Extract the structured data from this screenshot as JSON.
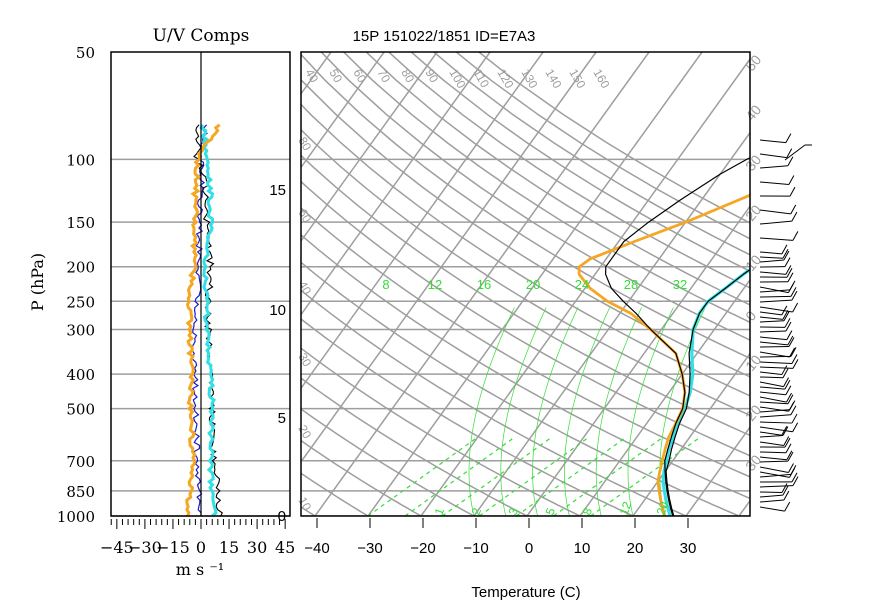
{
  "left_panel": {
    "title": "U/V Comps",
    "ylabel": "P (hPa)",
    "xlabel": "m s ⁻¹",
    "ytick_labels": [
      "50",
      "100",
      "150",
      "200",
      "250",
      "300",
      "400",
      "500",
      "700",
      "850",
      "1000"
    ],
    "xtick_labels": [
      "−45",
      "−30",
      "−15",
      "0",
      "15",
      "30",
      "45"
    ]
  },
  "right_panel": {
    "title": "15P 151022/1851 ID=E7A3",
    "xlabel": "Temperature (C)",
    "xtick_labels": [
      "−40",
      "−30",
      "−20",
      "−10",
      "0",
      "10",
      "20",
      "30"
    ],
    "height_labels": [
      "0",
      "5",
      "10",
      "15"
    ],
    "mixing_ratio_labels": [
      "8",
      "12",
      "16",
      "20",
      "24",
      "28",
      "32"
    ],
    "bottom_green_labels": [
      "1",
      "2",
      "3",
      "5",
      "8",
      "12",
      "20"
    ],
    "top_gray_labels": [
      "40",
      "50",
      "60",
      "70",
      "80",
      "90",
      "100",
      "110",
      "120",
      "130",
      "140",
      "150",
      "160"
    ],
    "left_gray_labels": [
      "80",
      "60",
      "40",
      "30",
      "20",
      "10"
    ],
    "right_gray_labels": [
      "50",
      "40",
      "30",
      "20",
      "10",
      "0",
      "10",
      "20",
      "30"
    ]
  },
  "colors": {
    "grid": "#9e9e9e",
    "temperature": "#000000",
    "parcel": "#000000",
    "dewpoint": "#f5a623",
    "cyan": "#33dfe6",
    "mixing_ratio": "#33dd33",
    "u_line": "#1a1acc"
  },
  "chart_data": {
    "type": "line",
    "title": "15P 151022/1851 ID=E7A3",
    "xlabel": "Temperature (C)",
    "ylabel": "P (hPa)",
    "xlim": [
      -44,
      40
    ],
    "ylim": [
      1000,
      50
    ],
    "log_pressure": true,
    "series": [
      {
        "pressure": [
          1000,
          950,
          900,
          850,
          800,
          750,
          700,
          650,
          600,
          550,
          500,
          450,
          400,
          350,
          300,
          270,
          250,
          230,
          210,
          200,
          190,
          170,
          150,
          130,
          110,
          100,
          90,
          80,
          75
        ],
        "temperature": [
          27.5,
          26,
          24.5,
          23,
          21.5,
          20,
          18.5,
          17.5,
          16.5,
          15.5,
          14.8,
          13,
          10,
          6,
          -2,
          -7,
          -11,
          -15,
          -18,
          -19,
          -19,
          -19,
          -17,
          -14,
          -10,
          -7,
          -3,
          4,
          8
        ]
      },
      {
        "pressure": [
          1000,
          950,
          900,
          850,
          800,
          750,
          700,
          650,
          600,
          550,
          500,
          450,
          400,
          350,
          300,
          270,
          250,
          230,
          210,
          200,
          190,
          170,
          150,
          130,
          110,
          100,
          90,
          80
        ],
        "temperature": [
          26,
          24.5,
          23,
          21.5,
          20,
          19,
          18,
          17,
          16,
          15.5,
          14.8,
          13,
          10,
          6,
          -2,
          -8,
          -14,
          -19,
          -23,
          -24,
          -23,
          -17,
          -10,
          -3,
          5,
          11,
          16,
          20
        ]
      },
      {
        "pressure": [
          1000,
          950,
          900,
          850,
          800,
          750,
          700,
          650,
          600,
          550,
          500,
          450,
          400,
          350,
          300,
          270,
          250,
          230,
          210,
          200,
          190,
          170,
          150,
          130,
          110,
          100,
          90,
          80
        ],
        "temperature": [
          27,
          25.5,
          24,
          22.5,
          21,
          19.8,
          18.8,
          17.7,
          16.8,
          16,
          15.2,
          14,
          12,
          9,
          6,
          5,
          5,
          6.5,
          8,
          9,
          10.5,
          15,
          20,
          26,
          33,
          38,
          44,
          50
        ]
      },
      {
        "pressure": [
          1000,
          950,
          900,
          850,
          800,
          750,
          700,
          650,
          600,
          550,
          500,
          450,
          400,
          350,
          300,
          270,
          250,
          230,
          210,
          200,
          180,
          160,
          140,
          120,
          100,
          90,
          80
        ],
        "temperature": [
          27.7,
          26.2,
          24.7,
          23.2,
          21.7,
          20.2,
          19.3,
          18.2,
          17.2,
          16.2,
          15.5,
          13.8,
          11.5,
          8.5,
          6,
          5,
          5,
          6.5,
          8,
          9,
          12,
          16,
          21,
          27,
          35,
          40,
          46
        ]
      }
    ],
    "wind_components": {
      "pressure": [
        1000,
        850,
        700,
        500,
        400,
        300,
        250,
        200,
        150,
        125,
        110,
        100,
        80
      ],
      "dewpoint_color_component": [
        -7,
        -6,
        -4,
        -6,
        -5,
        -6,
        -6,
        -4,
        -3,
        -3,
        -2,
        -2,
        10
      ],
      "cyan_component": [
        7,
        6,
        5,
        6,
        5,
        3,
        3,
        2,
        5,
        5,
        4,
        3,
        1
      ],
      "black_component": [
        10,
        9,
        7,
        6,
        5,
        4,
        4,
        5,
        3,
        3,
        1,
        -2,
        -1
      ],
      "blue_component": [
        0,
        -1,
        -2,
        -3,
        -3,
        -4,
        -2,
        -1,
        -1,
        0,
        1,
        0,
        3
      ]
    }
  }
}
